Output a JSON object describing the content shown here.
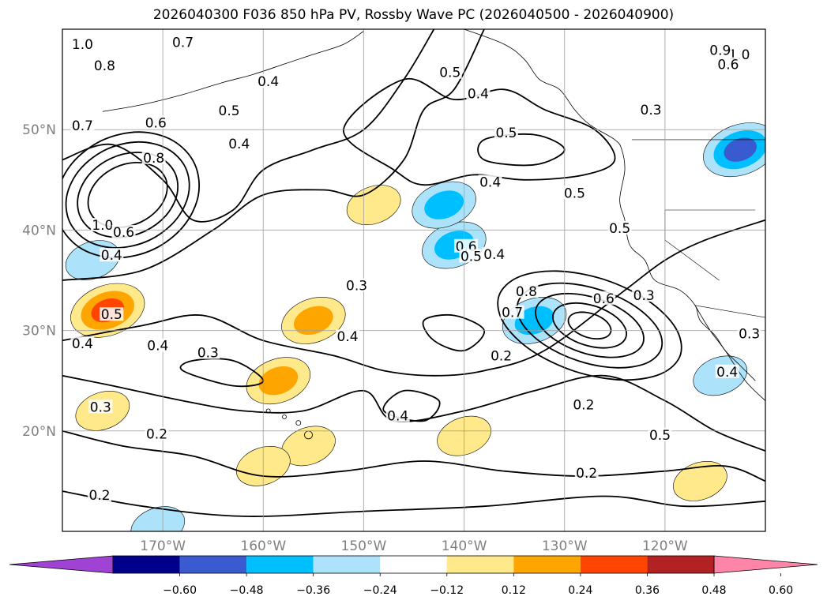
{
  "chart_data": {
    "type": "contour_map",
    "title": "2026040300 F036 850 hPa PV, Rossby Wave PC (2026040500 - 2026040900)",
    "map": {
      "lon_range": [
        -180,
        -110
      ],
      "lat_range": [
        10,
        60
      ],
      "grid": true,
      "lon_ticks": [
        {
          "value": -170,
          "label": "170°W"
        },
        {
          "value": -160,
          "label": "160°W"
        },
        {
          "value": -150,
          "label": "150°W"
        },
        {
          "value": -140,
          "label": "140°W"
        },
        {
          "value": -130,
          "label": "130°W"
        },
        {
          "value": -120,
          "label": "120°W"
        }
      ],
      "lat_ticks": [
        {
          "value": 20,
          "label": "20°N"
        },
        {
          "value": 30,
          "label": "30°N"
        },
        {
          "value": 40,
          "label": "40°N"
        },
        {
          "value": 50,
          "label": "50°N"
        }
      ]
    },
    "contour_labels": [
      {
        "text": "1.0",
        "lon": -178,
        "lat": 58.5
      },
      {
        "text": "0.8",
        "lon": -175.8,
        "lat": 56.4
      },
      {
        "text": "0.7",
        "lon": -168,
        "lat": 58.7
      },
      {
        "text": "0.7",
        "lon": -178,
        "lat": 50.4
      },
      {
        "text": "0.6",
        "lon": -170.7,
        "lat": 50.7
      },
      {
        "text": "0.8",
        "lon": -170.9,
        "lat": 47.2
      },
      {
        "text": "1.0",
        "lon": -176,
        "lat": 40.5
      },
      {
        "text": "0.6",
        "lon": -173.9,
        "lat": 39.8
      },
      {
        "text": "0.5",
        "lon": -163.4,
        "lat": 51.9
      },
      {
        "text": "0.4",
        "lon": -162.4,
        "lat": 48.6
      },
      {
        "text": "0.4",
        "lon": -159.5,
        "lat": 54.8
      },
      {
        "text": "0.4",
        "lon": -175.1,
        "lat": 37.5
      },
      {
        "text": "0.5",
        "lon": -175.1,
        "lat": 31.6
      },
      {
        "text": "0.4",
        "lon": -178,
        "lat": 28.7
      },
      {
        "text": "0.4",
        "lon": -170.5,
        "lat": 28.5
      },
      {
        "text": "0.3",
        "lon": -165.5,
        "lat": 27.8
      },
      {
        "text": "0.3",
        "lon": -176.2,
        "lat": 22.4
      },
      {
        "text": "0.2",
        "lon": -170.6,
        "lat": 19.7
      },
      {
        "text": "0.2",
        "lon": -176.3,
        "lat": 13.6
      },
      {
        "text": "0.5",
        "lon": -141.4,
        "lat": 55.7
      },
      {
        "text": "0.4",
        "lon": -138.6,
        "lat": 53.6
      },
      {
        "text": "0.5",
        "lon": -135.8,
        "lat": 49.7
      },
      {
        "text": "0.4",
        "lon": -137.4,
        "lat": 44.8
      },
      {
        "text": "0.5",
        "lon": -129,
        "lat": 43.7
      },
      {
        "text": "0.6",
        "lon": -139.8,
        "lat": 38.4
      },
      {
        "text": "0.5",
        "lon": -139.3,
        "lat": 37.4
      },
      {
        "text": "0.4",
        "lon": -137,
        "lat": 37.6
      },
      {
        "text": "0.3",
        "lon": -150.7,
        "lat": 34.5
      },
      {
        "text": "0.4",
        "lon": -151.6,
        "lat": 29.4
      },
      {
        "text": "0.2",
        "lon": -136.3,
        "lat": 27.5
      },
      {
        "text": "0.4",
        "lon": -146.6,
        "lat": 21.5
      },
      {
        "text": "0.8",
        "lon": -133.8,
        "lat": 33.9
      },
      {
        "text": "0.7",
        "lon": -135.2,
        "lat": 31.8
      },
      {
        "text": "0.6",
        "lon": -126.1,
        "lat": 33.2
      },
      {
        "text": "0.3",
        "lon": -122.1,
        "lat": 33.5
      },
      {
        "text": "0.2",
        "lon": -128.1,
        "lat": 22.6
      },
      {
        "text": "0.5",
        "lon": -120.5,
        "lat": 19.6
      },
      {
        "text": "0.2",
        "lon": -127.8,
        "lat": 15.8
      },
      {
        "text": "0.5",
        "lon": -124.5,
        "lat": 40.2
      },
      {
        "text": "0.3",
        "lon": -121.4,
        "lat": 52
      },
      {
        "text": "1.0",
        "lon": -112.6,
        "lat": 57.5
      },
      {
        "text": "0.9",
        "lon": -114.5,
        "lat": 57.9
      },
      {
        "text": "0.6",
        "lon": -113.7,
        "lat": 56.5
      },
      {
        "text": "0.3",
        "lon": -111.6,
        "lat": 29.7
      },
      {
        "text": "0.4",
        "lon": -113.8,
        "lat": 25.9
      }
    ],
    "shading_legend": {
      "variable": "Rossby Wave PC",
      "ticks": [
        "−0.60",
        "−0.48",
        "−0.36",
        "−0.24",
        "−0.12",
        "0.12",
        "0.24",
        "0.36",
        "0.48",
        "0.60"
      ],
      "levels": [
        -0.6,
        -0.48,
        -0.36,
        -0.24,
        -0.12,
        0.12,
        0.24,
        0.36,
        0.48,
        0.6
      ],
      "colors": [
        "#a042d4",
        "#00008b",
        "#3a5bd0",
        "#00bfff",
        "#ade3fa",
        "#ffffff",
        "#ffe98a",
        "#ffa500",
        "#ff4500",
        "#b22222",
        "#ff85a8"
      ],
      "extend": "both"
    },
    "shaded_regions": [
      {
        "sign": "positive",
        "max_level": 0.48,
        "center_lon": -175.5,
        "center_lat": 32
      },
      {
        "sign": "positive",
        "max_level": 0.36,
        "center_lon": -155,
        "center_lat": 31
      },
      {
        "sign": "positive",
        "max_level": 0.36,
        "center_lon": -158.5,
        "center_lat": 25
      },
      {
        "sign": "positive",
        "max_level": 0.24,
        "center_lon": -149,
        "center_lat": 42.5
      },
      {
        "sign": "positive",
        "max_level": 0.24,
        "center_lon": -176,
        "center_lat": 22
      },
      {
        "sign": "positive",
        "max_level": 0.24,
        "center_lon": -140,
        "center_lat": 19.5
      },
      {
        "sign": "positive",
        "max_level": 0.24,
        "center_lon": -155.5,
        "center_lat": 18.5
      },
      {
        "sign": "positive",
        "max_level": 0.24,
        "center_lon": -160,
        "center_lat": 16.5
      },
      {
        "sign": "positive",
        "max_level": 0.24,
        "center_lon": -116.5,
        "center_lat": 15
      },
      {
        "sign": "negative",
        "min_level": -0.48,
        "center_lon": -112.5,
        "center_lat": 48
      },
      {
        "sign": "negative",
        "min_level": -0.36,
        "center_lon": -133,
        "center_lat": 31
      },
      {
        "sign": "negative",
        "min_level": -0.36,
        "center_lon": -141,
        "center_lat": 38.5
      },
      {
        "sign": "negative",
        "min_level": -0.36,
        "center_lon": -142,
        "center_lat": 42.5
      },
      {
        "sign": "negative",
        "min_level": -0.24,
        "center_lon": -177,
        "center_lat": 37
      },
      {
        "sign": "negative",
        "min_level": -0.24,
        "center_lon": -170.5,
        "center_lat": 10.5
      },
      {
        "sign": "negative",
        "min_level": -0.24,
        "center_lon": -114.5,
        "center_lat": 25.5
      }
    ]
  }
}
